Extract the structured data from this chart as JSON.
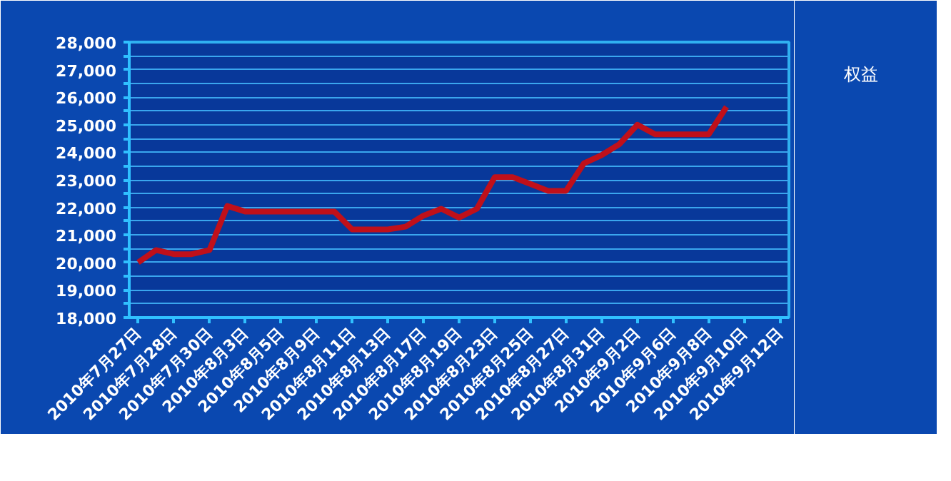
{
  "chart_data": {
    "type": "line",
    "categories": [
      "2010年7月27日",
      null,
      "2010年7月28日",
      null,
      "2010年7月30日",
      null,
      "2010年8月3日",
      null,
      "2010年8月5日",
      null,
      "2010年8月9日",
      null,
      "2010年8月11日",
      null,
      "2010年8月13日",
      null,
      "2010年8月17日",
      null,
      "2010年8月19日",
      null,
      "2010年8月23日",
      null,
      "2010年8月25日",
      null,
      "2010年8月27日",
      null,
      "2010年8月31日",
      null,
      "2010年9月2日",
      null,
      "2010年9月6日",
      null,
      "2010年9月8日",
      null,
      "2010年9月10日",
      null,
      "2010年9月12日"
    ],
    "series": [
      {
        "name": "权益",
        "color": "#c0101a",
        "values": [
          20000,
          20450,
          20300,
          20300,
          20450,
          22050,
          21850,
          21850,
          21850,
          21850,
          21850,
          21850,
          21200,
          21200,
          21200,
          21300,
          21700,
          21950,
          21630,
          21950,
          23100,
          23100,
          22850,
          22600,
          22600,
          23600,
          23900,
          24300,
          25000,
          24650,
          24650,
          24650,
          24650,
          25650,
          null,
          null,
          null
        ]
      }
    ],
    "ylim": [
      18000,
      28000
    ],
    "yticks": [
      {
        "value": 18000,
        "label": "18,000"
      },
      {
        "value": 18500,
        "label": null
      },
      {
        "value": 19000,
        "label": "19,000"
      },
      {
        "value": 19500,
        "label": null
      },
      {
        "value": 20000,
        "label": "20,000"
      },
      {
        "value": 20500,
        "label": null
      },
      {
        "value": 21000,
        "label": "21,000"
      },
      {
        "value": 21500,
        "label": null
      },
      {
        "value": 22000,
        "label": "22,000"
      },
      {
        "value": 22500,
        "label": null
      },
      {
        "value": 23000,
        "label": "23,000"
      },
      {
        "value": 23500,
        "label": null
      },
      {
        "value": 24000,
        "label": "24,000"
      },
      {
        "value": 24500,
        "label": null
      },
      {
        "value": 25000,
        "label": "25,000"
      },
      {
        "value": 25500,
        "label": null
      },
      {
        "value": 26000,
        "label": "26,000"
      },
      {
        "value": 26500,
        "label": null
      },
      {
        "value": 27000,
        "label": "27,000"
      },
      {
        "value": 27500,
        "label": null
      },
      {
        "value": 28000,
        "label": "28,000"
      }
    ],
    "grid": "y",
    "legend": "right",
    "marker": "none",
    "line_style": "solid"
  }
}
